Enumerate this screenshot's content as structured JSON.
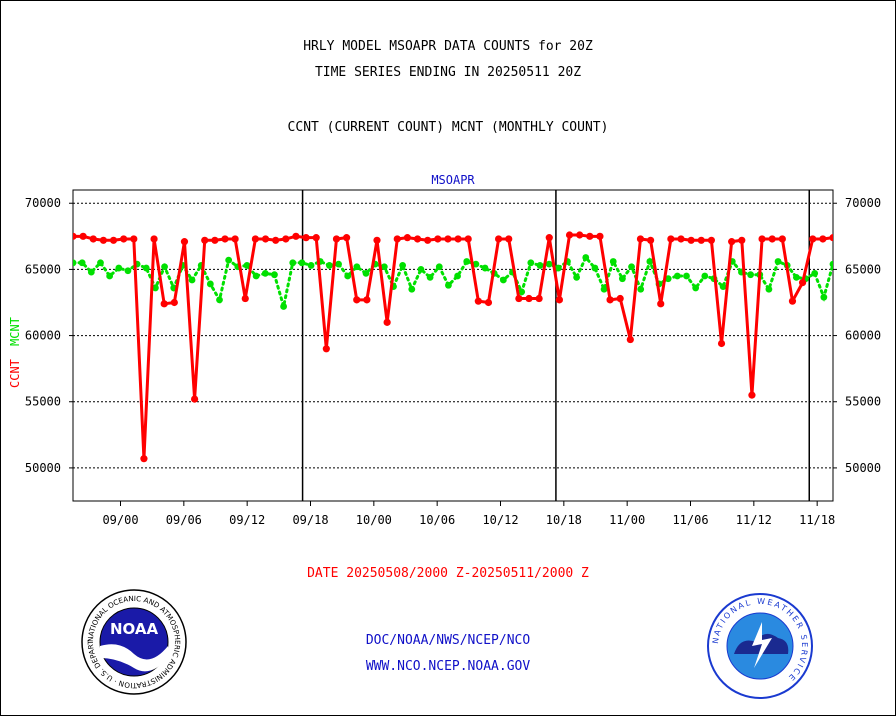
{
  "header": {
    "title_line1": "HRLY MODEL MSOAPR DATA COUNTS for 20Z",
    "title_line2": "TIME SERIES ENDING IN 20250511 20Z",
    "subtitle": "CCNT (CURRENT COUNT) MCNT (MONTHLY COUNT)"
  },
  "footer": {
    "date_range": "DATE 20250508/2000 Z-20250511/2000 Z",
    "link1": "DOC/NOAA/NWS/NCEP/NCO",
    "link2": "WWW.NCO.NCEP.NOAA.GOV"
  },
  "logos": {
    "left_text": "NOAA",
    "left_ring": "NATIONAL OCEANIC AND ATMOSPHERIC ADMINISTRATION · U.S. DEPARTMENT OF COMMERCE",
    "right_ring": "NATIONAL WEATHER SERVICE"
  },
  "colors": {
    "ccnt": "#ff0000",
    "mcnt": "#00e000",
    "label_blue": "#1010c8",
    "frame": "#000000"
  },
  "chart_data": {
    "type": "line",
    "title": "MSOAPR",
    "ylabel_ccnt": "CCNT",
    "ylabel_mcnt": "MCNT",
    "ylim": [
      47500,
      71000
    ],
    "yticks": [
      50000,
      55000,
      60000,
      65000,
      70000
    ],
    "ytick_labels": [
      "50000",
      "55000",
      "60000",
      "65000",
      "70000"
    ],
    "xlim": [
      -2,
      94
    ],
    "xticks": [
      4,
      12,
      20,
      28,
      36,
      44,
      52,
      60,
      68,
      76,
      84,
      92
    ],
    "xtick_labels": [
      "09/00",
      "09/06",
      "09/12",
      "09/18",
      "10/00",
      "10/06",
      "10/12",
      "10/18",
      "11/00",
      "11/06",
      "11/12",
      "11/18"
    ],
    "day_separators": [
      27,
      59,
      91
    ],
    "grid": true,
    "series": [
      {
        "name": "CCNT",
        "values": [
          67500,
          67500,
          67300,
          67200,
          67200,
          67300,
          67300,
          50700,
          67300,
          62400,
          62500,
          67100,
          55200,
          67200,
          67200,
          67300,
          67300,
          62800,
          67300,
          67300,
          67200,
          67300,
          67500,
          67400,
          67400,
          59000,
          67300,
          67400,
          62700,
          62700,
          67200,
          61000,
          67300,
          67400,
          67300,
          67200,
          67300,
          67300,
          67300,
          67300,
          62600,
          62500,
          67300,
          67300,
          62800,
          62800,
          62800,
          67400,
          62700,
          67600,
          67600,
          67500,
          67500,
          62700,
          62800,
          59700,
          67300,
          67200,
          62400,
          67300,
          67300,
          67200,
          67200,
          67200,
          59400,
          67100,
          67200,
          55500,
          67300,
          67300,
          67300,
          62600,
          64000,
          67300,
          67300,
          67400
        ]
      },
      {
        "name": "MCNT",
        "values": [
          65500,
          65500,
          64800,
          65500,
          64500,
          65100,
          64900,
          65400,
          65100,
          63600,
          65200,
          63600,
          65300,
          64200,
          65300,
          63900,
          62700,
          65700,
          65200,
          65300,
          64500,
          64700,
          64600,
          62200,
          65500,
          65500,
          65300,
          65600,
          65300,
          65400,
          64500,
          65200,
          64700,
          65400,
          65200,
          63700,
          65300,
          63500,
          65000,
          64400,
          65200,
          63800,
          64500,
          65600,
          65400,
          65100,
          64700,
          64200,
          64800,
          63300,
          65500,
          65300,
          65400,
          65100,
          65600,
          64400,
          65900,
          65100,
          63500,
          65600,
          64300,
          65200,
          63500,
          65600,
          63900,
          64300,
          64500,
          64500,
          63600,
          64500,
          64300,
          63700,
          65600,
          64800,
          64600,
          64600,
          63500,
          65600,
          65300,
          64400,
          64300,
          64700,
          62900,
          65400
        ]
      }
    ]
  }
}
